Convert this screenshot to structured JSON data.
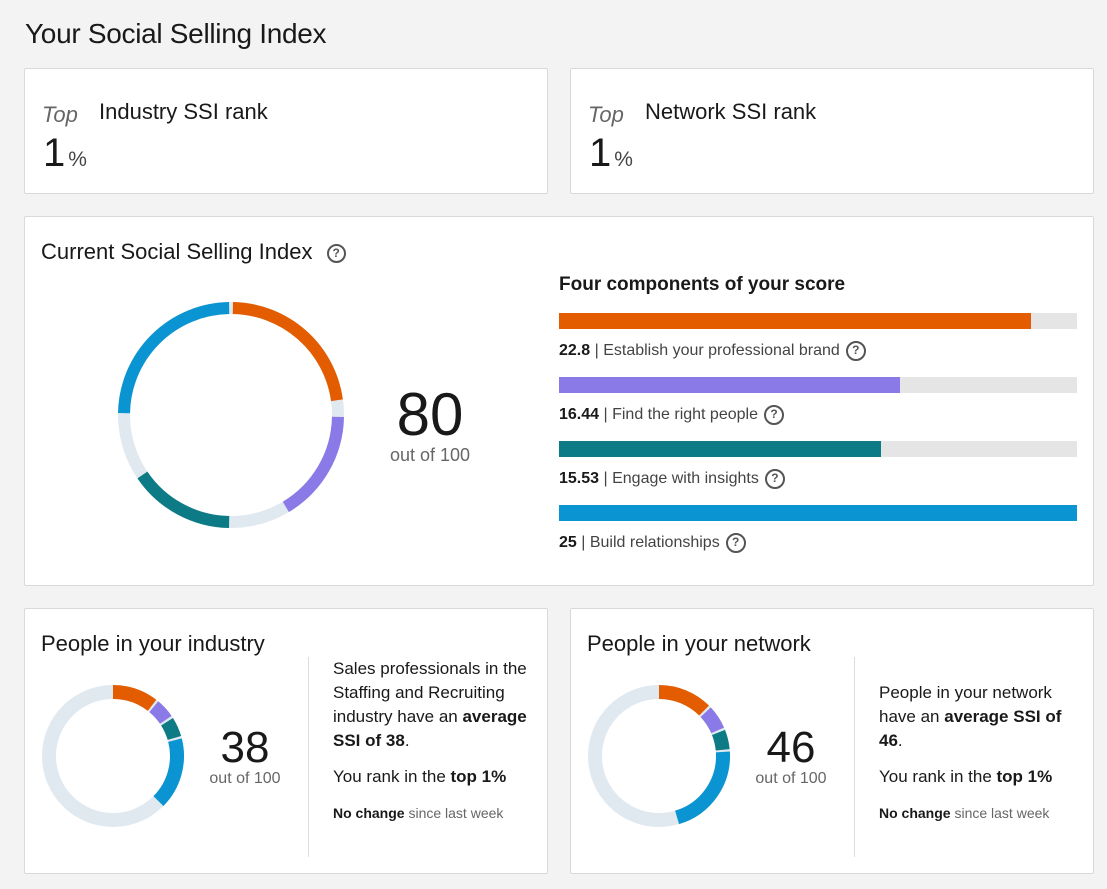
{
  "page_title": "Your Social Selling Index",
  "industry_rank": {
    "prefix": "Top",
    "label": "Industry SSI rank",
    "value": "1",
    "unit": "%"
  },
  "network_rank": {
    "prefix": "Top",
    "label": "Network SSI rank",
    "value": "1",
    "unit": "%"
  },
  "current": {
    "title": "Current Social Selling Index",
    "help_icon": "question-circle-icon",
    "score": "80",
    "out_of": "out of 100",
    "components_title": "Four components of your score",
    "components": [
      {
        "value": "22.8",
        "label": "| Establish your professional brand",
        "max": 25,
        "color": "#e35c00"
      },
      {
        "value": "16.44",
        "label": "| Find the right people",
        "max": 25,
        "color": "#8a7ae8"
      },
      {
        "value": "15.53",
        "label": "| Engage with insights",
        "max": 25,
        "color": "#0d7b85"
      },
      {
        "value": "25",
        "label": "| Build relationships",
        "max": 25,
        "color": "#0a94d1"
      }
    ]
  },
  "industry": {
    "title": "People in your industry",
    "score": "38",
    "out_of": "out of 100",
    "segments": [
      11,
      5,
      5,
      17
    ],
    "desc_pre": "Sales professionals in the Staffing and Recruiting industry have an ",
    "desc_bold": "average SSI of 38",
    "desc_post": ".",
    "rank_pre": "You rank in the ",
    "rank_bold": "top 1%",
    "change_bold": "No change",
    "change_rest": " since last week"
  },
  "network": {
    "title": "People in your network",
    "score": "46",
    "out_of": "out of 100",
    "segments": [
      13,
      6,
      5,
      22
    ],
    "desc_pre": "People in your network have an ",
    "desc_bold": "average SSI of 46",
    "desc_post": ".",
    "rank_pre": "You rank in the ",
    "rank_bold": "top 1%",
    "change_bold": "No change",
    "change_rest": " since last week"
  },
  "colors": {
    "track": "#e1e9f0",
    "orange": "#e35c00",
    "purple": "#8a7ae8",
    "teal": "#0d7b85",
    "blue": "#0a94d1"
  }
}
